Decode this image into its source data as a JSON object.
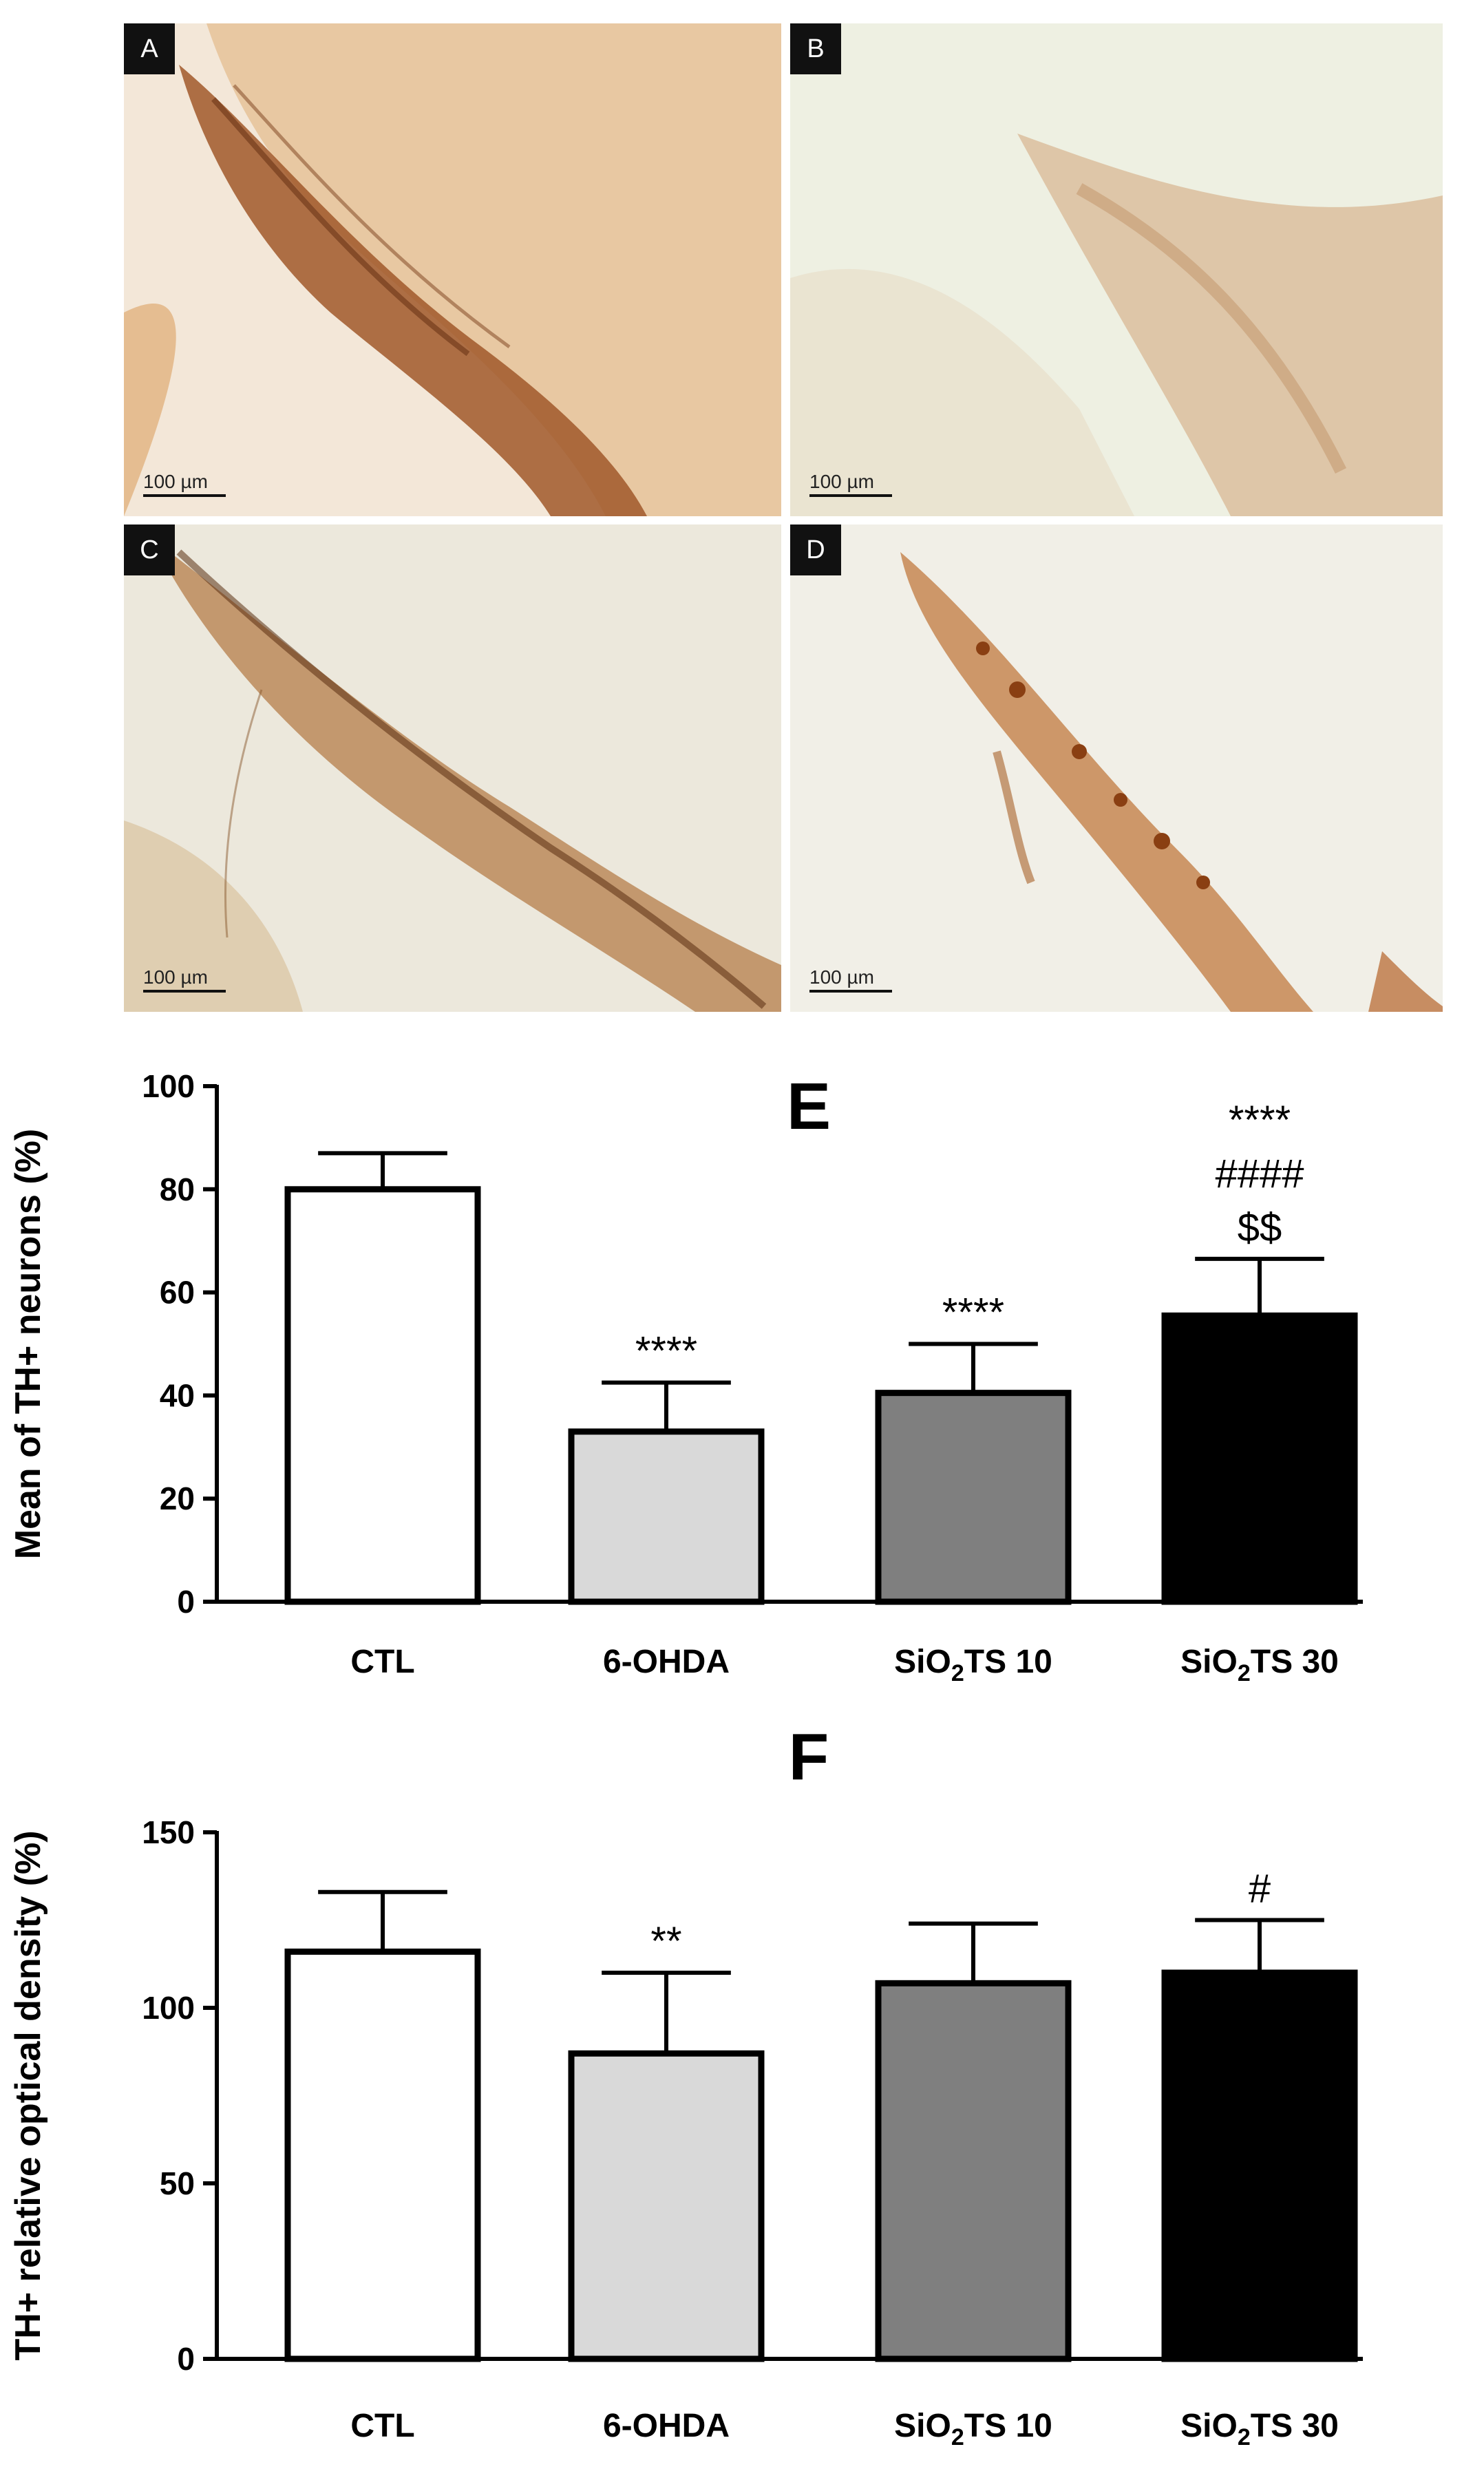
{
  "panels": [
    {
      "letter": "A",
      "scale": "100 µm",
      "stain": "#b5733f",
      "bg": "#f3e7d8"
    },
    {
      "letter": "B",
      "scale": "100 µm",
      "stain": "#b88a62",
      "bg": "#eef0e2"
    },
    {
      "letter": "C",
      "scale": "100  µm",
      "stain": "#7e4a22",
      "bg": "#ece8dc"
    },
    {
      "letter": "D",
      "scale": "100  µm",
      "stain": "#a25a26",
      "bg": "#f1efe7"
    }
  ],
  "chart_data": [
    {
      "type": "bar",
      "panel_label": "E",
      "ylabel": "Mean of TH+ neurons (%)",
      "categories": [
        "CTL",
        "6-OHDA",
        "SiO2TS 10",
        "SiO2TS 30"
      ],
      "values": [
        80,
        33,
        40.5,
        55.5
      ],
      "errors": [
        7,
        9.5,
        9.5,
        11
      ],
      "annotations": [
        [],
        [
          "****"
        ],
        [
          "****"
        ],
        [
          "****",
          "####",
          "$$"
        ]
      ],
      "colors": [
        "#ffffff",
        "#d9d9d9",
        "#7f7f7f",
        "#000000"
      ],
      "ylim": [
        0,
        100
      ],
      "yticks": [
        0,
        20,
        40,
        60,
        80,
        100
      ],
      "grid": false
    },
    {
      "type": "bar",
      "panel_label": "F",
      "ylabel": "TH+ relative optical density (%)",
      "categories": [
        "CTL",
        "6-OHDA",
        "SiO2TS 10",
        "SiO2TS 30"
      ],
      "values": [
        116,
        87,
        107,
        110
      ],
      "errors": [
        17,
        23,
        17,
        15
      ],
      "annotations": [
        [],
        [
          "**"
        ],
        [],
        [
          "#"
        ]
      ],
      "colors": [
        "#ffffff",
        "#d9d9d9",
        "#7f7f7f",
        "#000000"
      ],
      "ylim": [
        0,
        150
      ],
      "yticks": [
        0,
        50,
        100,
        150
      ],
      "grid": false
    }
  ]
}
